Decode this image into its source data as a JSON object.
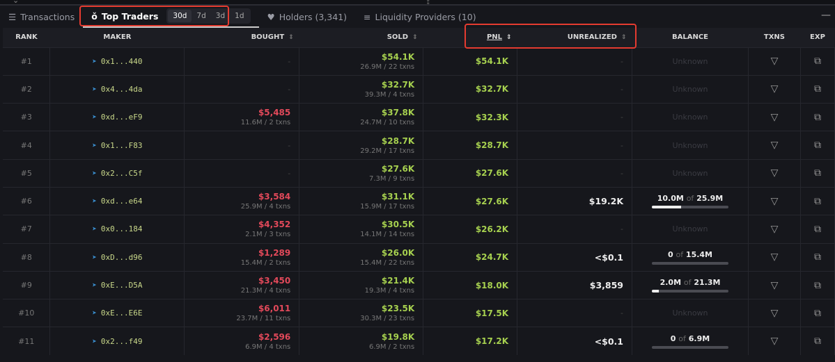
{
  "tabs": [
    {
      "label": "Transactions",
      "icon": "list-icon"
    },
    {
      "label": "Top Traders",
      "icon": "medal-icon",
      "periods": [
        "30d",
        "7d",
        "3d",
        "1d"
      ],
      "selected_period": "30d"
    },
    {
      "label": "Holders (3,341)",
      "icon": "diamond-icon"
    },
    {
      "label": "Liquidity Providers (10)",
      "icon": "lines-icon"
    }
  ],
  "columns": {
    "rank": "RANK",
    "maker": "MAKER",
    "bought": "BOUGHT",
    "sold": "SOLD",
    "pnl": "PNL",
    "unrealized": "UNREALIZED",
    "balance": "BALANCE",
    "txns": "TXNS",
    "exp": "EXP"
  },
  "colors": {
    "profit": "#a6d04f",
    "loss": "#e2495a",
    "highlight": "#e53b30"
  },
  "rows": [
    {
      "rank": "#1",
      "maker": "0x1...440",
      "bought": "-",
      "sold": "$54.1K",
      "sold_sub": "26.9M / 22 txns",
      "pnl": "$54.1K",
      "unrealized": "-",
      "balance": "Unknown"
    },
    {
      "rank": "#2",
      "maker": "0x4...4da",
      "bought": "-",
      "sold": "$32.7K",
      "sold_sub": "39.3M / 4 txns",
      "pnl": "$32.7K",
      "unrealized": "-",
      "balance": "Unknown"
    },
    {
      "rank": "#3",
      "maker": "0xd...eF9",
      "bought": "$5,485",
      "bought_sub": "11.6M / 2 txns",
      "sold": "$37.8K",
      "sold_sub": "24.7M / 10 txns",
      "pnl": "$32.3K",
      "unrealized": "-",
      "balance": "Unknown"
    },
    {
      "rank": "#4",
      "maker": "0x1...F83",
      "bought": "-",
      "sold": "$28.7K",
      "sold_sub": "29.2M / 17 txns",
      "pnl": "$28.7K",
      "unrealized": "-",
      "balance": "Unknown"
    },
    {
      "rank": "#5",
      "maker": "0x2...C5f",
      "bought": "-",
      "sold": "$27.6K",
      "sold_sub": "7.3M / 9 txns",
      "pnl": "$27.6K",
      "unrealized": "-",
      "balance": "Unknown"
    },
    {
      "rank": "#6",
      "maker": "0xd...e64",
      "bought": "$3,584",
      "bought_sub": "25.9M / 4 txns",
      "sold": "$31.1K",
      "sold_sub": "15.9M / 17 txns",
      "pnl": "$27.6K",
      "unrealized": "$19.2K",
      "balance_held": "10.0M",
      "balance_total": "25.9M",
      "balance_fraction": 0.38
    },
    {
      "rank": "#7",
      "maker": "0x0...184",
      "bought": "$4,352",
      "bought_sub": "2.1M / 3 txns",
      "sold": "$30.5K",
      "sold_sub": "14.1M / 14 txns",
      "pnl": "$26.2K",
      "unrealized": "-",
      "balance": "Unknown"
    },
    {
      "rank": "#8",
      "maker": "0xD...d96",
      "bought": "$1,289",
      "bought_sub": "15.4M / 2 txns",
      "sold": "$26.0K",
      "sold_sub": "15.4M / 22 txns",
      "pnl": "$24.7K",
      "unrealized": "<$0.1",
      "balance_held": "0",
      "balance_total": "15.4M",
      "balance_fraction": 0
    },
    {
      "rank": "#9",
      "maker": "0xE...D5A",
      "bought": "$3,450",
      "bought_sub": "21.3M / 4 txns",
      "sold": "$21.4K",
      "sold_sub": "19.3M / 4 txns",
      "pnl": "$18.0K",
      "unrealized": "$3,859",
      "balance_held": "2.0M",
      "balance_total": "21.3M",
      "balance_fraction": 0.09
    },
    {
      "rank": "#10",
      "maker": "0xE...E6E",
      "bought": "$6,011",
      "bought_sub": "23.7M / 11 txns",
      "sold": "$23.5K",
      "sold_sub": "30.3M / 23 txns",
      "pnl": "$17.5K",
      "unrealized": "-",
      "balance": "Unknown"
    },
    {
      "rank": "#11",
      "maker": "0x2...f49",
      "bought": "$2,596",
      "bought_sub": "6.9M / 4 txns",
      "sold": "$19.8K",
      "sold_sub": "6.9M / 2 txns",
      "pnl": "$17.2K",
      "unrealized": "<$0.1",
      "balance_held": "0",
      "balance_total": "6.9M",
      "balance_fraction": 0
    }
  ],
  "balance_of": "of"
}
